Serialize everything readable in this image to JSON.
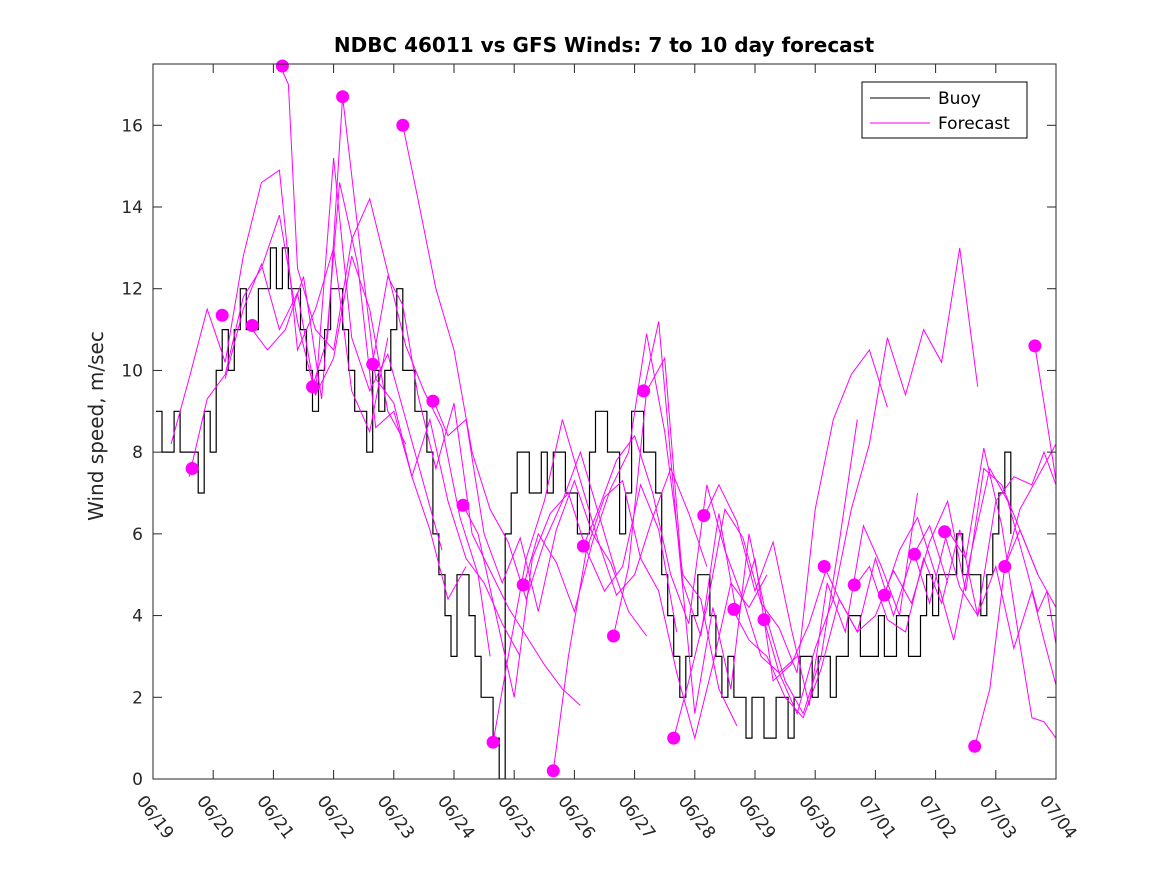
{
  "chart_data": {
    "type": "line",
    "title": "NDBC 46011 vs GFS Winds: 7 to 10 day forecast",
    "xlabel": "",
    "ylabel": "Wind speed, m/sec",
    "xlim": [
      0,
      15
    ],
    "ylim": [
      0,
      17.5
    ],
    "x_ticks": [
      {
        "value": 0,
        "label": "06/19"
      },
      {
        "value": 1,
        "label": "06/20"
      },
      {
        "value": 2,
        "label": "06/21"
      },
      {
        "value": 3,
        "label": "06/22"
      },
      {
        "value": 4,
        "label": "06/23"
      },
      {
        "value": 5,
        "label": "06/24"
      },
      {
        "value": 6,
        "label": "06/25"
      },
      {
        "value": 7,
        "label": "06/26"
      },
      {
        "value": 8,
        "label": "06/27"
      },
      {
        "value": 9,
        "label": "06/28"
      },
      {
        "value": 10,
        "label": "06/29"
      },
      {
        "value": 11,
        "label": "06/30"
      },
      {
        "value": 12,
        "label": "07/01"
      },
      {
        "value": 13,
        "label": "07/02"
      },
      {
        "value": 14,
        "label": "07/03"
      },
      {
        "value": 15,
        "label": "07/04"
      }
    ],
    "y_ticks": [
      0,
      2,
      4,
      6,
      8,
      10,
      12,
      14,
      16
    ],
    "grid": false,
    "legend": {
      "position": "top-right",
      "entries": [
        "Buoy",
        "Forecast"
      ]
    },
    "colors": {
      "buoy": "#000000",
      "forecast": "#ff00ff",
      "axis": "#262626"
    },
    "buoy": {
      "name": "Buoy",
      "x": [
        0.05,
        0.15,
        0.25,
        0.35,
        0.45,
        0.55,
        0.65,
        0.75,
        0.85,
        0.95,
        1.05,
        1.15,
        1.25,
        1.35,
        1.45,
        1.55,
        1.65,
        1.75,
        1.85,
        1.95,
        2.05,
        2.15,
        2.25,
        2.35,
        2.45,
        2.55,
        2.65,
        2.75,
        2.85,
        2.95,
        3.05,
        3.15,
        3.25,
        3.35,
        3.45,
        3.55,
        3.65,
        3.75,
        3.85,
        3.95,
        4.05,
        4.15,
        4.25,
        4.35,
        4.45,
        4.55,
        4.65,
        4.75,
        4.85,
        4.95,
        5.05,
        5.15,
        5.25,
        5.35,
        5.45,
        5.55,
        5.65,
        5.75,
        5.85,
        5.95,
        6.05,
        6.15,
        6.25,
        6.35,
        6.45,
        6.55,
        6.65,
        6.75,
        6.85,
        6.95,
        7.05,
        7.15,
        7.25,
        7.35,
        7.45,
        7.55,
        7.65,
        7.75,
        7.85,
        7.95,
        8.05,
        8.15,
        8.25,
        8.35,
        8.45,
        8.55,
        8.65,
        8.75,
        8.85,
        8.95,
        9.05,
        9.15,
        9.25,
        9.35,
        9.45,
        9.55,
        9.65,
        9.75,
        9.85,
        9.95,
        10.05,
        10.15,
        10.25,
        10.35,
        10.45,
        10.55,
        10.65,
        10.75,
        10.85,
        10.95,
        11.05,
        11.15,
        11.25,
        11.35,
        11.45,
        11.55,
        11.65,
        11.75,
        11.85,
        11.95,
        12.05,
        12.15,
        12.25,
        12.35,
        12.45,
        12.55,
        12.65,
        12.75,
        12.85,
        12.95,
        13.05,
        13.15,
        13.25,
        13.35,
        13.45,
        13.55,
        13.65,
        13.75,
        13.85,
        13.95,
        14.05,
        14.15,
        14.25
      ],
      "y": [
        9,
        8,
        8,
        9,
        8,
        8,
        8,
        7,
        9,
        8,
        10,
        11,
        10,
        11,
        12,
        11,
        11,
        12,
        12,
        13,
        12,
        13,
        12,
        12,
        11,
        10,
        9,
        10,
        11,
        12,
        12,
        11,
        10,
        9,
        9,
        8,
        10,
        9,
        10,
        11,
        12,
        10,
        10,
        9,
        9,
        8,
        6,
        5,
        4,
        3,
        5,
        5,
        4,
        3,
        2,
        2,
        1,
        0,
        6,
        7,
        8,
        8,
        7,
        7,
        8,
        7,
        8,
        8,
        7,
        7,
        6,
        6,
        8,
        9,
        9,
        8,
        8,
        6,
        7,
        9,
        9,
        8,
        8,
        7,
        5,
        4,
        3,
        2,
        3,
        4,
        5,
        5,
        4,
        3,
        2,
        3,
        2,
        2,
        1,
        2,
        2,
        1,
        1,
        2,
        2,
        1,
        2,
        3,
        3,
        2,
        3,
        3,
        2,
        3,
        3,
        4,
        4,
        3,
        3,
        3,
        4,
        3,
        3,
        4,
        4,
        3,
        3,
        4,
        5,
        4,
        5,
        5,
        5,
        6,
        5,
        5,
        5,
        4,
        5,
        6,
        7,
        8,
        6
      ]
    },
    "forecast_runs": [
      {
        "x": [
          0.3,
          0.6,
          0.9,
          1.2,
          1.5,
          1.8,
          2.1,
          2.4,
          2.7,
          3.0,
          3.3,
          3.6,
          3.9
        ],
        "y": [
          8.2,
          9.8,
          11.5,
          10.2,
          12.8,
          14.6,
          14.9,
          10.5,
          11.5,
          13.0,
          9.5,
          8.5,
          10.8
        ]
      },
      {
        "x": [
          0.6,
          0.9,
          1.2,
          1.5,
          1.8,
          2.1,
          2.4,
          2.7,
          3.0,
          3.3,
          3.6,
          3.9,
          4.2
        ],
        "y": [
          7.4,
          9.3,
          9.9,
          11.8,
          12.5,
          13.8,
          11.2,
          9.4,
          10.3,
          12.8,
          11.5,
          9.0,
          8.2
        ]
      },
      {
        "x": [
          1.2,
          1.5,
          1.8,
          2.1,
          2.4,
          2.7,
          3.0,
          3.3,
          3.6,
          3.9,
          4.2,
          4.5,
          4.8
        ],
        "y": [
          9.8,
          11.5,
          12.6,
          11.0,
          11.9,
          9.4,
          15.2,
          10.8,
          9.5,
          10.4,
          8.8,
          7.2,
          5.6
        ]
      },
      {
        "x": [
          1.6,
          1.9,
          2.2,
          2.5,
          2.8,
          3.1,
          3.4,
          3.7,
          4.0,
          4.3,
          4.6,
          4.9,
          5.2
        ],
        "y": [
          11.1,
          10.5,
          11.0,
          12.3,
          9.3,
          14.6,
          12.6,
          8.6,
          9.0,
          7.4,
          6.1,
          4.4,
          5.2
        ]
      },
      {
        "x": [
          2.1,
          2.25,
          2.4,
          2.7,
          3.0,
          3.3,
          3.6,
          3.9,
          4.2,
          4.5,
          4.8,
          5.1,
          5.4,
          5.6
        ],
        "y": [
          17.5,
          17.0,
          12.5,
          11.0,
          10.5,
          13.2,
          14.2,
          12.4,
          10.6,
          9.5,
          8.6,
          6.4,
          5.0,
          3.0
        ]
      },
      {
        "x": [
          2.65,
          2.9,
          3.15,
          3.4,
          3.7,
          4.0,
          4.3,
          4.6,
          4.9,
          5.2,
          5.5,
          5.8,
          6.1
        ],
        "y": [
          9.6,
          10.8,
          16.7,
          13.5,
          9.8,
          9.2,
          7.4,
          8.8,
          6.8,
          5.4,
          4.8,
          3.8,
          3.0
        ]
      },
      {
        "x": [
          3.65,
          3.9,
          4.15,
          4.4,
          4.7,
          5.0,
          5.3,
          5.6,
          5.9,
          6.2,
          6.5,
          6.8,
          7.1
        ],
        "y": [
          10.2,
          12.3,
          11.6,
          9.4,
          7.6,
          9.2,
          6.0,
          5.1,
          4.2,
          3.5,
          2.8,
          2.2,
          1.8
        ]
      },
      {
        "x": [
          4.15,
          4.4,
          4.7,
          5.0,
          5.3,
          5.6,
          5.9,
          6.2,
          6.5,
          6.8,
          7.1,
          7.4,
          7.7
        ],
        "y": [
          16.0,
          14.2,
          12.0,
          10.5,
          8.0,
          6.6,
          5.8,
          4.4,
          5.8,
          6.8,
          8.0,
          6.5,
          5.0
        ]
      },
      {
        "x": [
          4.65,
          4.9,
          5.2,
          5.5,
          5.8,
          6.1,
          6.4,
          6.7,
          7.0,
          7.3,
          7.6,
          7.9,
          8.2
        ],
        "y": [
          9.3,
          8.4,
          8.8,
          6.0,
          4.8,
          5.9,
          4.1,
          6.1,
          7.3,
          6.0,
          5.3,
          4.1,
          3.5
        ]
      },
      {
        "x": [
          5.15,
          5.4,
          5.7,
          6.0,
          6.3,
          6.6,
          6.9,
          7.2,
          7.5,
          7.8,
          8.1,
          8.4,
          8.7
        ],
        "y": [
          6.7,
          6.0,
          4.0,
          2.0,
          5.4,
          6.5,
          7.0,
          5.6,
          4.6,
          5.2,
          7.2,
          6.1,
          3.6
        ]
      },
      {
        "x": [
          5.65,
          5.9,
          6.2,
          6.5,
          6.8,
          7.1,
          7.4,
          7.7,
          8.0,
          8.3,
          8.6,
          8.9,
          9.2
        ],
        "y": [
          0.9,
          3.0,
          5.4,
          6.8,
          8.8,
          7.3,
          5.8,
          4.5,
          5.0,
          6.4,
          7.6,
          6.5,
          5.2
        ]
      },
      {
        "x": [
          6.15,
          6.4,
          6.7,
          7.0,
          7.3,
          7.6,
          7.9,
          8.2,
          8.5,
          8.8,
          9.1,
          9.4,
          9.7
        ],
        "y": [
          4.7,
          6.0,
          5.3,
          4.1,
          5.8,
          7.1,
          8.0,
          10.9,
          8.5,
          5.0,
          4.4,
          2.2,
          1.3
        ]
      },
      {
        "x": [
          6.65,
          6.9,
          7.2,
          7.5,
          7.8,
          8.1,
          8.4,
          8.7,
          9.0,
          9.3,
          9.6,
          9.9,
          10.2
        ],
        "y": [
          0.2,
          3.0,
          5.6,
          6.9,
          7.3,
          5.4,
          4.6,
          2.6,
          1.0,
          2.8,
          4.8,
          4.2,
          5.0
        ]
      },
      {
        "x": [
          7.15,
          7.4,
          7.7,
          8.0,
          8.3,
          8.6,
          8.9,
          9.2,
          9.5,
          9.8,
          10.1,
          10.4,
          10.7
        ],
        "y": [
          5.7,
          6.6,
          7.8,
          8.4,
          7.0,
          5.0,
          3.8,
          7.2,
          5.6,
          4.4,
          3.0,
          2.6,
          3.0
        ]
      },
      {
        "x": [
          7.65,
          7.9,
          8.2,
          8.5,
          8.8,
          9.1,
          9.4,
          9.7,
          10.0,
          10.3,
          10.6,
          10.9,
          11.2
        ],
        "y": [
          3.5,
          5.2,
          9.5,
          10.3,
          4.8,
          3.5,
          6.5,
          4.0,
          5.4,
          2.4,
          2.8,
          3.8,
          5.2
        ]
      },
      {
        "x": [
          8.15,
          8.4,
          8.7,
          9.0,
          9.3,
          9.6,
          9.9,
          10.2,
          10.5,
          10.8,
          11.1,
          11.4,
          11.7
        ],
        "y": [
          9.5,
          11.2,
          6.2,
          1.6,
          4.2,
          2.2,
          6.0,
          3.9,
          2.4,
          1.6,
          3.0,
          5.8,
          8.8
        ]
      },
      {
        "x": [
          8.65,
          8.9,
          9.2,
          9.5,
          9.8,
          10.1,
          10.4,
          10.7,
          11.0,
          11.3,
          11.6,
          11.9,
          12.2
        ],
        "y": [
          1.0,
          2.4,
          4.2,
          6.6,
          5.9,
          4.3,
          3.7,
          2.6,
          6.6,
          8.8,
          9.9,
          10.5,
          9.1
        ]
      },
      {
        "x": [
          9.15,
          9.4,
          9.7,
          10.0,
          10.3,
          10.6,
          10.9,
          11.2,
          11.5,
          11.8,
          12.1,
          12.4,
          12.7
        ],
        "y": [
          6.4,
          7.2,
          6.3,
          4.6,
          5.8,
          3.7,
          1.8,
          4.8,
          3.6,
          6.2,
          5.2,
          4.0,
          7.0
        ]
      },
      {
        "x": [
          9.65,
          9.9,
          10.2,
          10.5,
          10.8,
          11.1,
          11.4,
          11.7,
          12.0,
          12.3,
          12.6,
          12.9,
          13.2
        ],
        "y": [
          4.1,
          3.4,
          3.0,
          2.0,
          1.5,
          2.7,
          4.4,
          3.6,
          5.4,
          4.0,
          5.4,
          6.2,
          4.8
        ]
      },
      {
        "x": [
          10.15,
          10.4,
          10.7,
          11.0,
          11.3,
          11.6,
          11.9,
          12.2,
          12.5,
          12.8,
          13.1,
          13.4,
          13.7
        ],
        "y": [
          3.9,
          2.6,
          1.6,
          3.2,
          4.4,
          6.6,
          8.2,
          10.8,
          9.4,
          11.0,
          10.2,
          13.0,
          9.6
        ]
      },
      {
        "x": [
          11.15,
          11.4,
          11.7,
          12.0,
          12.3,
          12.6,
          12.9,
          13.2,
          13.5,
          13.8,
          14.1,
          14.4,
          14.7
        ],
        "y": [
          5.2,
          4.4,
          3.6,
          4.0,
          5.1,
          4.3,
          5.8,
          6.8,
          4.6,
          7.6,
          7.2,
          6.1,
          5.0
        ]
      },
      {
        "x": [
          11.65,
          11.9,
          12.2,
          12.5,
          12.8,
          13.1,
          13.4,
          13.7,
          14.0,
          14.3,
          14.6,
          14.8,
          15.0
        ],
        "y": [
          4.7,
          5.2,
          3.9,
          3.6,
          5.4,
          4.3,
          6.1,
          4.0,
          5.2,
          3.2,
          4.6,
          3.4,
          2.3
        ]
      },
      {
        "x": [
          12.15,
          12.4,
          12.7,
          13.0,
          13.3,
          13.6,
          13.9,
          14.2,
          14.5,
          14.7,
          14.85,
          15.0
        ],
        "y": [
          4.5,
          5.6,
          6.4,
          5.0,
          3.4,
          5.6,
          7.6,
          6.8,
          5.2,
          4.1,
          4.6,
          3.3
        ]
      },
      {
        "x": [
          12.65,
          12.9,
          13.2,
          13.5,
          13.8,
          14.1,
          14.4,
          14.6,
          14.8,
          15.0
        ],
        "y": [
          5.5,
          4.3,
          6.1,
          5.4,
          8.1,
          6.2,
          3.3,
          1.5,
          1.4,
          1.0
        ]
      },
      {
        "x": [
          13.15,
          13.4,
          13.7,
          14.0,
          14.3,
          14.6,
          14.8,
          15.0
        ],
        "y": [
          6.0,
          4.7,
          4.0,
          6.8,
          7.4,
          7.2,
          8.0,
          7.2
        ]
      },
      {
        "x": [
          13.65,
          13.9,
          14.15,
          14.4,
          14.7,
          15.0
        ],
        "y": [
          0.8,
          2.2,
          5.2,
          6.1,
          5.0,
          4.2
        ]
      },
      {
        "x": [
          14.15,
          14.4,
          14.7,
          15.0
        ],
        "y": [
          5.2,
          6.6,
          7.4,
          8.2
        ]
      },
      {
        "x": [
          14.65,
          14.8,
          15.0
        ],
        "y": [
          10.6,
          9.2,
          7.3
        ]
      }
    ],
    "forecast_markers": [
      {
        "x": 0.65,
        "y": 7.6
      },
      {
        "x": 1.15,
        "y": 11.35
      },
      {
        "x": 1.65,
        "y": 11.1
      },
      {
        "x": 2.15,
        "y": 17.45
      },
      {
        "x": 2.65,
        "y": 9.6
      },
      {
        "x": 3.15,
        "y": 16.7
      },
      {
        "x": 3.65,
        "y": 10.15
      },
      {
        "x": 4.15,
        "y": 16.0
      },
      {
        "x": 4.65,
        "y": 9.25
      },
      {
        "x": 5.15,
        "y": 6.7
      },
      {
        "x": 5.65,
        "y": 0.9
      },
      {
        "x": 6.15,
        "y": 4.75
      },
      {
        "x": 6.65,
        "y": 0.2
      },
      {
        "x": 7.15,
        "y": 5.7
      },
      {
        "x": 7.65,
        "y": 3.5
      },
      {
        "x": 8.15,
        "y": 9.5
      },
      {
        "x": 8.65,
        "y": 1.0
      },
      {
        "x": 9.15,
        "y": 6.45
      },
      {
        "x": 9.65,
        "y": 4.15
      },
      {
        "x": 10.15,
        "y": 3.9
      },
      {
        "x": 11.15,
        "y": 5.2
      },
      {
        "x": 11.65,
        "y": 4.75
      },
      {
        "x": 12.15,
        "y": 4.5
      },
      {
        "x": 12.65,
        "y": 5.5
      },
      {
        "x": 13.15,
        "y": 6.05
      },
      {
        "x": 13.65,
        "y": 0.8
      },
      {
        "x": 14.15,
        "y": 5.2
      },
      {
        "x": 14.65,
        "y": 10.6
      }
    ]
  }
}
